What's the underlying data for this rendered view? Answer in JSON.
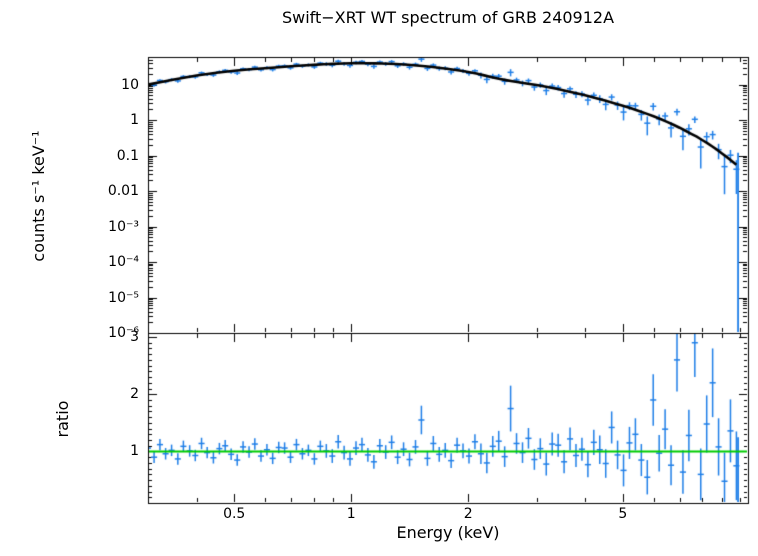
{
  "chart_data": {
    "type": "line",
    "title": "Swift−XRT WT spectrum of GRB 240912A",
    "xlabel": "Energy (keV)",
    "xscale": "log",
    "xlim": [
      0.3,
      10.5
    ],
    "xticks": {
      "values": [
        0.5,
        1,
        2,
        5
      ],
      "labels": [
        "0.5",
        "1",
        "2",
        "5"
      ]
    },
    "xminor": [
      0.4,
      0.6,
      0.7,
      0.8,
      0.9,
      3,
      4,
      6,
      7,
      8,
      9,
      10
    ],
    "colors": {
      "data": "#1f7fe8",
      "model": "#000000",
      "reference": "#00cc00",
      "frame": "#000000"
    },
    "panels": [
      {
        "name": "spectrum",
        "ylabel": "counts s⁻¹ keV⁻¹",
        "yscale": "log",
        "ylim": [
          1e-06,
          60
        ],
        "yticks": {
          "values": [
            10,
            1,
            0.1,
            0.01,
            0.001,
            0.0001,
            1e-05,
            1e-06
          ],
          "labels": [
            "10",
            "1",
            "0.1",
            "0.01",
            "10⁻³",
            "10⁻⁴",
            "10⁻⁵",
            "10⁻⁶"
          ]
        },
        "model": [
          [
            0.3,
            10
          ],
          [
            0.35,
            14
          ],
          [
            0.4,
            18
          ],
          [
            0.45,
            21.5
          ],
          [
            0.5,
            24.5
          ],
          [
            0.55,
            27
          ],
          [
            0.6,
            29
          ],
          [
            0.65,
            31
          ],
          [
            0.7,
            33
          ],
          [
            0.75,
            34.5
          ],
          [
            0.8,
            36
          ],
          [
            0.85,
            37.5
          ],
          [
            0.9,
            38.5
          ],
          [
            0.95,
            39.5
          ],
          [
            1.0,
            40
          ],
          [
            1.05,
            40.2
          ],
          [
            1.1,
            40
          ],
          [
            1.15,
            39.7
          ],
          [
            1.2,
            39.2
          ],
          [
            1.3,
            38
          ],
          [
            1.4,
            36.2
          ],
          [
            1.5,
            34
          ],
          [
            1.6,
            31.8
          ],
          [
            1.7,
            29.5
          ],
          [
            1.8,
            27.2
          ],
          [
            1.9,
            25
          ],
          [
            2.0,
            22.8
          ],
          [
            2.1,
            20.6
          ],
          [
            2.2,
            18.2
          ],
          [
            2.3,
            16.2
          ],
          [
            2.4,
            14.6
          ],
          [
            2.5,
            13.4
          ],
          [
            2.6,
            12.4
          ],
          [
            2.7,
            11.6
          ],
          [
            2.85,
            10.6
          ],
          [
            3.0,
            9.7
          ],
          [
            3.2,
            8.6
          ],
          [
            3.4,
            7.5
          ],
          [
            3.6,
            6.5
          ],
          [
            3.8,
            5.7
          ],
          [
            4.0,
            5.0
          ],
          [
            4.25,
            4.2
          ],
          [
            4.5,
            3.55
          ],
          [
            4.75,
            3.0
          ],
          [
            5.0,
            2.55
          ],
          [
            5.25,
            2.15
          ],
          [
            5.5,
            1.8
          ],
          [
            5.75,
            1.52
          ],
          [
            6.0,
            1.28
          ],
          [
            6.25,
            1.07
          ],
          [
            6.5,
            0.89
          ],
          [
            6.75,
            0.74
          ],
          [
            7.0,
            0.61
          ],
          [
            7.25,
            0.5
          ],
          [
            7.5,
            0.41
          ],
          [
            7.75,
            0.34
          ],
          [
            8.0,
            0.275
          ],
          [
            8.25,
            0.225
          ],
          [
            8.5,
            0.18
          ],
          [
            8.75,
            0.145
          ],
          [
            9.0,
            0.115
          ],
          [
            9.25,
            0.092
          ],
          [
            9.5,
            0.073
          ],
          [
            9.8,
            0.055
          ]
        ],
        "last_bin": {
          "x": 9.9,
          "y_top": 0.12,
          "y_bottom": 1e-06
        }
      },
      {
        "name": "ratio",
        "ylabel": "ratio",
        "yscale": "linear",
        "ylim": [
          0.1,
          3.07
        ],
        "yticks": {
          "values": [
            1,
            2,
            3
          ],
          "labels": [
            "1",
            "2",
            "3"
          ]
        },
        "reference_line": {
          "y": 1
        },
        "last_bin": {
          "x": 9.9,
          "y_top": 1.25,
          "y_bottom": 0.1
        }
      }
    ],
    "ratio_points": [
      [
        0.3,
        1.06,
        0.1
      ],
      [
        0.311,
        0.9,
        0.1
      ],
      [
        0.322,
        1.12,
        0.1
      ],
      [
        0.333,
        0.96,
        0.1
      ],
      [
        0.345,
        1.02,
        0.1
      ],
      [
        0.358,
        0.87,
        0.1
      ],
      [
        0.37,
        1.09,
        0.1
      ],
      [
        0.384,
        1.01,
        0.1
      ],
      [
        0.397,
        0.93,
        0.1
      ],
      [
        0.412,
        1.14,
        0.1
      ],
      [
        0.426,
        0.98,
        0.1
      ],
      [
        0.442,
        0.89,
        0.1
      ],
      [
        0.458,
        1.05,
        0.1
      ],
      [
        0.474,
        1.1,
        0.1
      ],
      [
        0.491,
        0.95,
        0.1
      ],
      [
        0.509,
        0.85,
        0.1
      ],
      [
        0.527,
        1.08,
        0.1
      ],
      [
        0.546,
        0.99,
        0.1
      ],
      [
        0.565,
        1.13,
        0.1
      ],
      [
        0.586,
        0.92,
        0.1
      ],
      [
        0.607,
        1.03,
        0.1
      ],
      [
        0.628,
        0.88,
        0.1
      ],
      [
        0.651,
        1.07,
        0.1
      ],
      [
        0.674,
        1.06,
        0.1
      ],
      [
        0.698,
        0.9,
        0.1
      ],
      [
        0.723,
        1.12,
        0.1
      ],
      [
        0.749,
        0.96,
        0.1
      ],
      [
        0.776,
        1.02,
        0.1
      ],
      [
        0.804,
        0.87,
        0.1
      ],
      [
        0.833,
        1.09,
        0.1
      ],
      [
        0.863,
        1.01,
        0.12
      ],
      [
        0.894,
        0.92,
        0.12
      ],
      [
        0.926,
        1.17,
        0.12
      ],
      [
        0.959,
        0.98,
        0.12
      ],
      [
        0.993,
        0.87,
        0.12
      ],
      [
        1.029,
        1.06,
        0.12
      ],
      [
        1.066,
        1.12,
        0.12
      ],
      [
        1.104,
        0.94,
        0.12
      ],
      [
        1.144,
        0.82,
        0.12
      ],
      [
        1.185,
        1.1,
        0.12
      ],
      [
        1.227,
        0.99,
        0.12
      ],
      [
        1.271,
        1.16,
        0.12
      ],
      [
        1.317,
        0.9,
        0.12
      ],
      [
        1.364,
        1.04,
        0.12
      ],
      [
        1.413,
        0.86,
        0.12
      ],
      [
        1.464,
        1.08,
        0.12
      ],
      [
        1.516,
        1.55,
        0.25
      ],
      [
        1.571,
        0.88,
        0.13
      ],
      [
        1.627,
        1.14,
        0.13
      ],
      [
        1.685,
        0.95,
        0.13
      ],
      [
        1.746,
        1.02,
        0.13
      ],
      [
        1.808,
        0.84,
        0.13
      ],
      [
        1.873,
        1.11,
        0.13
      ],
      [
        1.94,
        1.01,
        0.13
      ],
      [
        2.01,
        0.92,
        0.13
      ],
      [
        2.082,
        1.17,
        0.13
      ],
      [
        2.157,
        0.96,
        0.18
      ],
      [
        2.234,
        0.8,
        0.18
      ],
      [
        2.314,
        1.09,
        0.18
      ],
      [
        2.397,
        1.18,
        0.18
      ],
      [
        2.483,
        0.91,
        0.18
      ],
      [
        2.572,
        1.75,
        0.4
      ],
      [
        2.664,
        1.14,
        0.18
      ],
      [
        2.76,
        0.98,
        0.18
      ],
      [
        2.859,
        1.23,
        0.18
      ],
      [
        2.961,
        0.86,
        0.18
      ],
      [
        3.067,
        1.05,
        0.18
      ],
      [
        3.177,
        0.78,
        0.2
      ],
      [
        3.291,
        1.13,
        0.2
      ],
      [
        3.409,
        1.11,
        0.2
      ],
      [
        3.531,
        0.82,
        0.2
      ],
      [
        3.658,
        1.22,
        0.2
      ],
      [
        3.789,
        0.93,
        0.2
      ],
      [
        3.925,
        1.04,
        0.2
      ],
      [
        4.066,
        0.77,
        0.22
      ],
      [
        4.211,
        1.16,
        0.22
      ],
      [
        4.362,
        1.03,
        0.25
      ],
      [
        4.519,
        0.79,
        0.25
      ],
      [
        4.681,
        1.42,
        0.28
      ],
      [
        4.848,
        0.94,
        0.25
      ],
      [
        5.022,
        0.67,
        0.28
      ],
      [
        5.202,
        1.15,
        0.28
      ],
      [
        5.388,
        1.3,
        0.28
      ],
      [
        5.581,
        0.85,
        0.28
      ],
      [
        5.781,
        0.55,
        0.3
      ],
      [
        5.988,
        1.9,
        0.45
      ],
      [
        6.203,
        0.97,
        0.32
      ],
      [
        6.425,
        1.39,
        0.35
      ],
      [
        6.655,
        0.76,
        0.35
      ],
      [
        6.894,
        2.6,
        0.55
      ],
      [
        7.141,
        0.64,
        0.38
      ],
      [
        7.397,
        1.28,
        0.45
      ],
      [
        7.662,
        2.9,
        0.6
      ],
      [
        7.936,
        0.6,
        0.45
      ],
      [
        8.221,
        1.48,
        0.5
      ],
      [
        8.515,
        2.2,
        0.6
      ],
      [
        8.82,
        1.08,
        0.5
      ],
      [
        9.136,
        0.48,
        0.5
      ],
      [
        9.464,
        1.36,
        0.55
      ],
      [
        9.803,
        0.75,
        0.6
      ]
    ]
  }
}
